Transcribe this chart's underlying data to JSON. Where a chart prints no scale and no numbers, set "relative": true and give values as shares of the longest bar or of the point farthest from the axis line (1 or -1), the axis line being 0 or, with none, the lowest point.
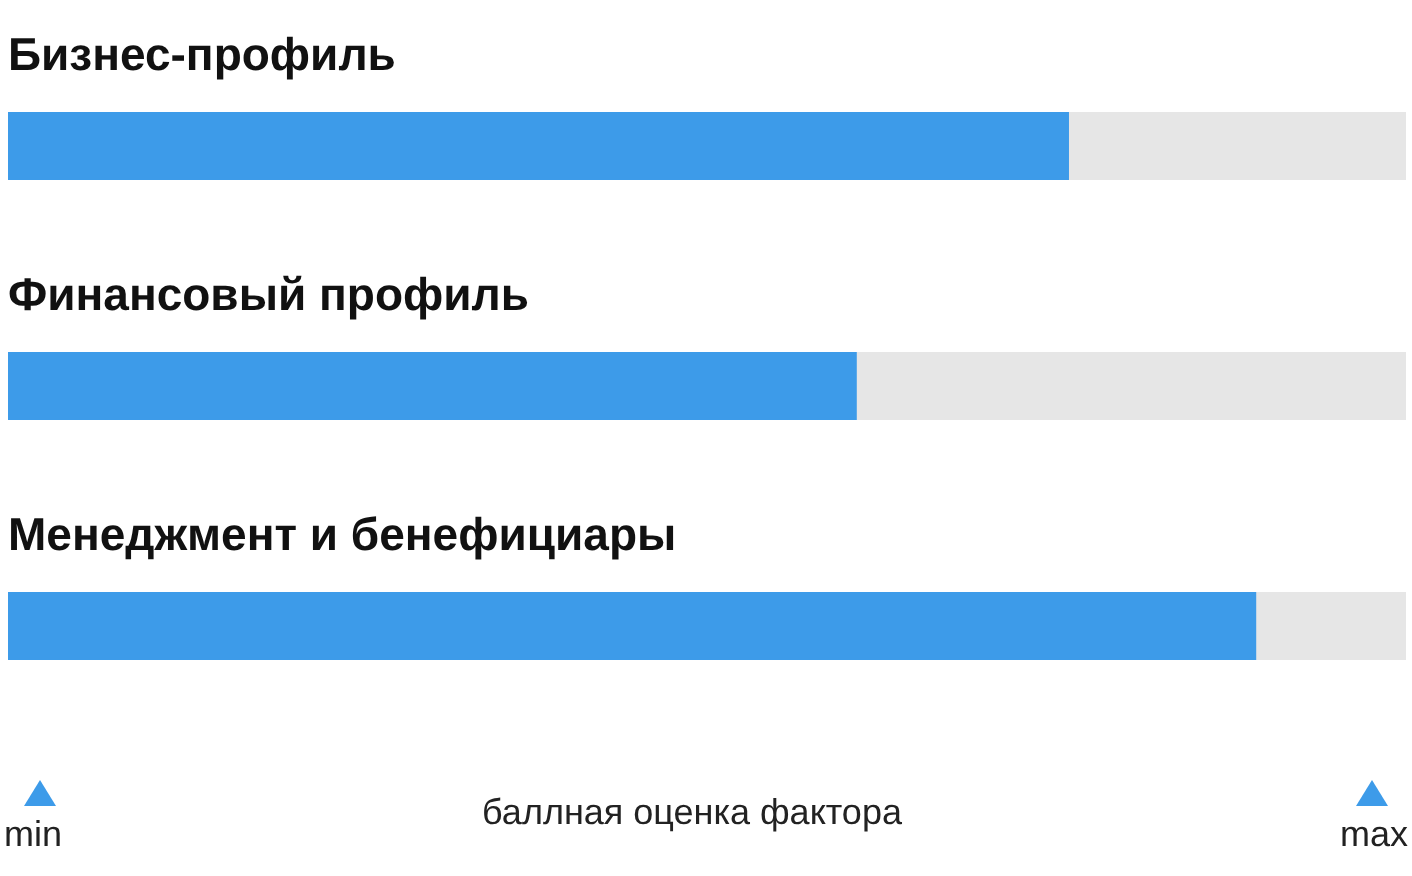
{
  "chart_data": {
    "type": "bar",
    "orientation": "horizontal",
    "relative": true,
    "categories": [
      "Бизнес-профиль",
      "Финансовый профиль",
      "Менеджмент и бенефициары"
    ],
    "values": [
      0.85,
      0.68,
      1
    ],
    "color": "#3d9be9",
    "xlabel": "баллная оценка фактора",
    "annotations": [
      "min",
      "max"
    ]
  }
}
